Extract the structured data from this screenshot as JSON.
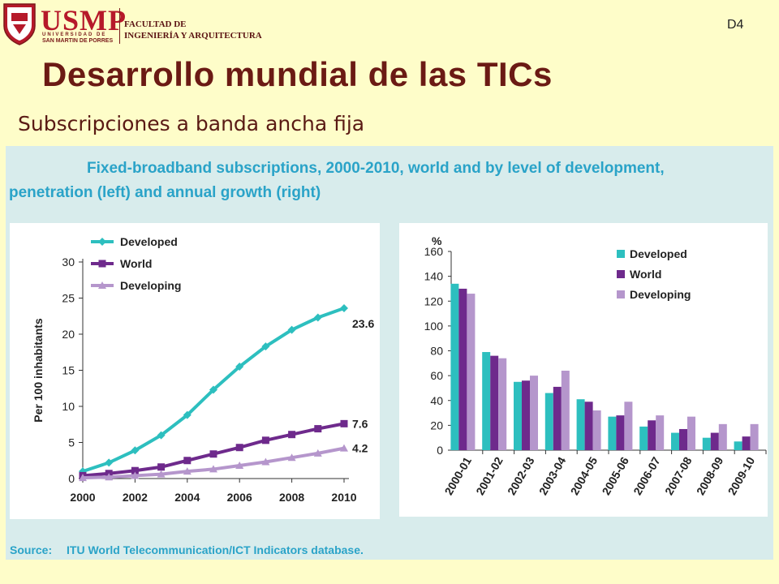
{
  "header": {
    "logo_text": "USMP",
    "logo_sub1": "UNIVERSIDAD DE",
    "logo_sub2": "SAN MARTIN DE PORRES",
    "faculty_line1": "FACULTAD DE",
    "faculty_line2": "INGENIERÍA Y ARQUITECTURA",
    "slide_code": "D4"
  },
  "slide": {
    "title": "Desarrollo mundial de las TICs",
    "subtitle": "Subscripciones a banda ancha fija"
  },
  "figure": {
    "title_line1": "Fixed-broadband subscriptions, 2000-2010, world and by level of development,",
    "title_line2": "penetration (left) and annual growth (right)",
    "source_label": "Source:",
    "source_text": "ITU World Telecommunication/ICT Indicators database."
  },
  "colors": {
    "developed": "#2dbfbf",
    "world": "#6e2a8c",
    "developing": "#b596cc",
    "figure_title": "#2aa3c8"
  },
  "chart_data": [
    {
      "type": "line",
      "ylabel": "Per 100 inhabitants",
      "ylim": [
        0,
        30
      ],
      "yticks": [
        0,
        5,
        10,
        15,
        20,
        25,
        30
      ],
      "xticks": [
        2000,
        2002,
        2004,
        2006,
        2008,
        2010
      ],
      "x": [
        2000,
        2001,
        2002,
        2003,
        2004,
        2005,
        2006,
        2007,
        2008,
        2009,
        2010
      ],
      "legend_position": "top-left",
      "series": [
        {
          "name": "Developed",
          "color": "#2dbfbf",
          "marker": "diamond",
          "values": [
            1.0,
            2.2,
            3.9,
            6.0,
            8.8,
            12.3,
            15.5,
            18.3,
            20.6,
            22.3,
            23.6
          ],
          "end_label": "23.6"
        },
        {
          "name": "World",
          "color": "#6e2a8c",
          "marker": "square",
          "values": [
            0.4,
            0.7,
            1.1,
            1.6,
            2.5,
            3.4,
            4.3,
            5.3,
            6.1,
            6.9,
            7.6
          ],
          "end_label": "7.6"
        },
        {
          "name": "Developing",
          "color": "#b596cc",
          "marker": "triangle",
          "values": [
            0.1,
            0.2,
            0.4,
            0.6,
            1.0,
            1.3,
            1.8,
            2.3,
            2.9,
            3.5,
            4.2
          ],
          "end_label": "4.2"
        }
      ]
    },
    {
      "type": "bar",
      "ylabel": "%",
      "ylim": [
        0,
        160
      ],
      "yticks": [
        0,
        20,
        40,
        60,
        80,
        100,
        120,
        140,
        160
      ],
      "categories": [
        "2000-01",
        "2001-02",
        "2002-03",
        "2003-04",
        "2004-05",
        "2005-06",
        "2006-07",
        "2007-08",
        "2008-09",
        "2009-10"
      ],
      "legend_position": "top-right",
      "series": [
        {
          "name": "Developed",
          "color": "#2dbfbf",
          "values": [
            134,
            79,
            55,
            46,
            41,
            27,
            19,
            14,
            10,
            7
          ]
        },
        {
          "name": "World",
          "color": "#6e2a8c",
          "values": [
            130,
            76,
            56,
            51,
            39,
            28,
            24,
            17,
            14,
            11
          ]
        },
        {
          "name": "Developing",
          "color": "#b596cc",
          "values": [
            126,
            74,
            60,
            64,
            32,
            39,
            28,
            27,
            21,
            21
          ]
        }
      ]
    }
  ]
}
